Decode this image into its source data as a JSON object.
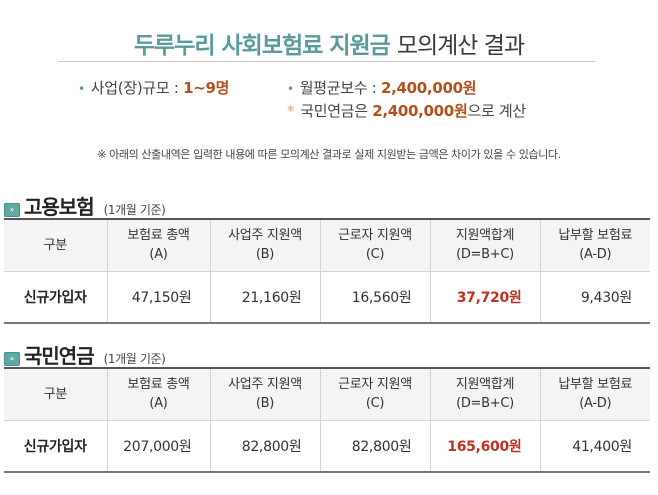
{
  "title": {
    "highlight": "두루누리 사회보험료 지원금",
    "rest": "모의계산 결과"
  },
  "info": {
    "business_size_label": "사업(장)규모 :",
    "business_size_value": "1~9명",
    "avg_wage_label": "월평균보수  :",
    "avg_wage_value": "2,400,000원",
    "pension_note_prefix": "국민연금은",
    "pension_note_value": "2,400,000원",
    "pension_note_suffix": "으로 계산",
    "bullet": "•",
    "star": "*"
  },
  "notice": "※ 아래의 산출내역은 입력한 내용에 따른 모의계산 결과로 실제 지원받는 금액은 차이가 있을 수 있습니다.",
  "section_icon": "double-chevron-right-icon",
  "headers": [
    {
      "line1": "구분",
      "line2": ""
    },
    {
      "line1": "보험료 총액",
      "line2": "(A)"
    },
    {
      "line1": "사업주 지원액",
      "line2": "(B)"
    },
    {
      "line1": "근로자 지원액",
      "line2": "(C)"
    },
    {
      "line1": "지원액합계",
      "line2": "(D=B+C)"
    },
    {
      "line1": "납부할 보험료",
      "line2": "(A-D)"
    }
  ],
  "sections": [
    {
      "title": "고용보험",
      "subtitle": "(1개월 기준)",
      "row": {
        "label": "신규가입자",
        "total_A": "47,150원",
        "employer_B": "21,160원",
        "worker_C": "16,560원",
        "sum_D": "37,720원",
        "payable": "9,430원"
      }
    },
    {
      "title": "국민연금",
      "subtitle": "(1개월 기준)",
      "row": {
        "label": "신규가입자",
        "total_A": "207,000원",
        "employer_B": "82,800원",
        "worker_C": "82,800원",
        "sum_D": "165,600원",
        "payable": "41,400원"
      }
    }
  ],
  "colors": {
    "title_accent": "#5a9a9c",
    "value_accent": "#b5501c",
    "highlight_sum": "#c0321e",
    "header_bg": "#f4f4f4"
  }
}
